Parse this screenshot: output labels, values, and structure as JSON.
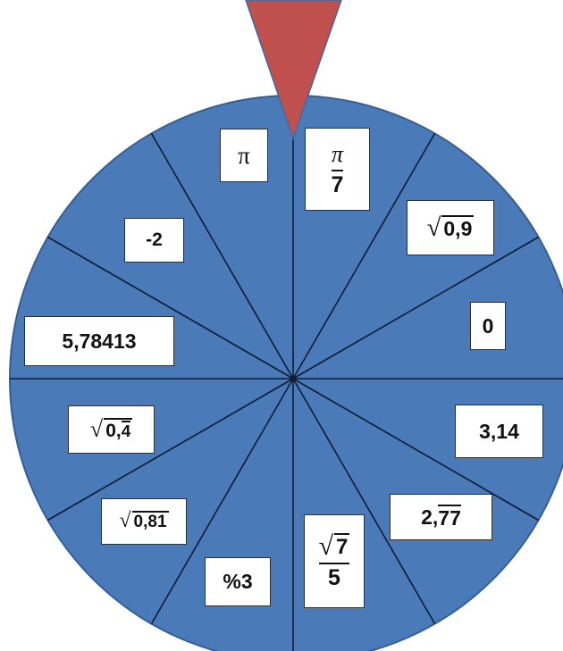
{
  "colors": {
    "wheel_fill": "#4a7ab8",
    "wheel_stroke": "#355f94",
    "divider": "#0e1b33",
    "pointer": "#c0504d",
    "pointer_stroke": "#3c6aa6"
  },
  "wheel": {
    "segments": [
      {
        "id": "pi",
        "text": "π"
      },
      {
        "id": "pi-over-7",
        "numerator": "π",
        "denominator": "7"
      },
      {
        "id": "sqrt-0-9",
        "radicand": "0,9"
      },
      {
        "id": "zero",
        "text": "0"
      },
      {
        "id": "three-fourteen",
        "text": "3,14"
      },
      {
        "id": "repeating-2-77",
        "integer": "2,",
        "repeating": "77"
      },
      {
        "id": "sqrt7-over-5",
        "numerator_radicand": "7",
        "denominator": "5"
      },
      {
        "id": "percent-3",
        "text": "%3"
      },
      {
        "id": "sqrt-0-81",
        "radicand": "0,81"
      },
      {
        "id": "sqrt-0-4-repeating",
        "radicand_prefix": "0,",
        "radicand_repeating": "4"
      },
      {
        "id": "five-78413",
        "text": "5,78413"
      },
      {
        "id": "minus-two",
        "text": "-2"
      }
    ]
  }
}
